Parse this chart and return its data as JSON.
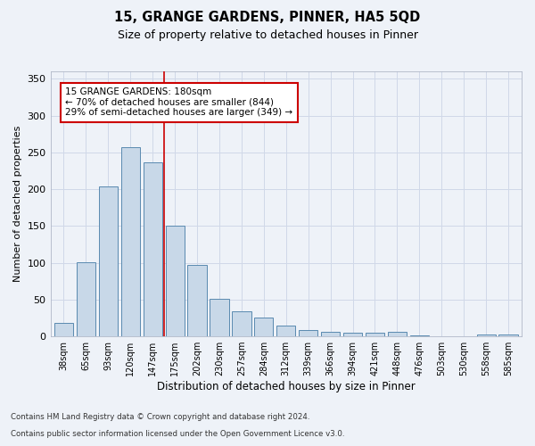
{
  "title": "15, GRANGE GARDENS, PINNER, HA5 5QD",
  "subtitle": "Size of property relative to detached houses in Pinner",
  "xlabel": "Distribution of detached houses by size in Pinner",
  "ylabel": "Number of detached properties",
  "categories": [
    "38sqm",
    "65sqm",
    "93sqm",
    "120sqm",
    "147sqm",
    "175sqm",
    "202sqm",
    "230sqm",
    "257sqm",
    "284sqm",
    "312sqm",
    "339sqm",
    "366sqm",
    "394sqm",
    "421sqm",
    "448sqm",
    "476sqm",
    "503sqm",
    "530sqm",
    "558sqm",
    "585sqm"
  ],
  "values": [
    18,
    101,
    204,
    257,
    236,
    150,
    97,
    51,
    34,
    26,
    15,
    9,
    6,
    5,
    5,
    6,
    1,
    0,
    0,
    3,
    2
  ],
  "bar_color": "#c8d8e8",
  "bar_edge_color": "#5a8ab0",
  "grid_color": "#d0d8e8",
  "background_color": "#eef2f8",
  "ref_line_x": 5,
  "ref_line_color": "#cc0000",
  "annotation_text": "15 GRANGE GARDENS: 180sqm\n← 70% of detached houses are smaller (844)\n29% of semi-detached houses are larger (349) →",
  "annotation_box_color": "#cc0000",
  "footer_line1": "Contains HM Land Registry data © Crown copyright and database right 2024.",
  "footer_line2": "Contains public sector information licensed under the Open Government Licence v3.0.",
  "ylim": [
    0,
    360
  ],
  "yticks": [
    0,
    50,
    100,
    150,
    200,
    250,
    300,
    350
  ]
}
